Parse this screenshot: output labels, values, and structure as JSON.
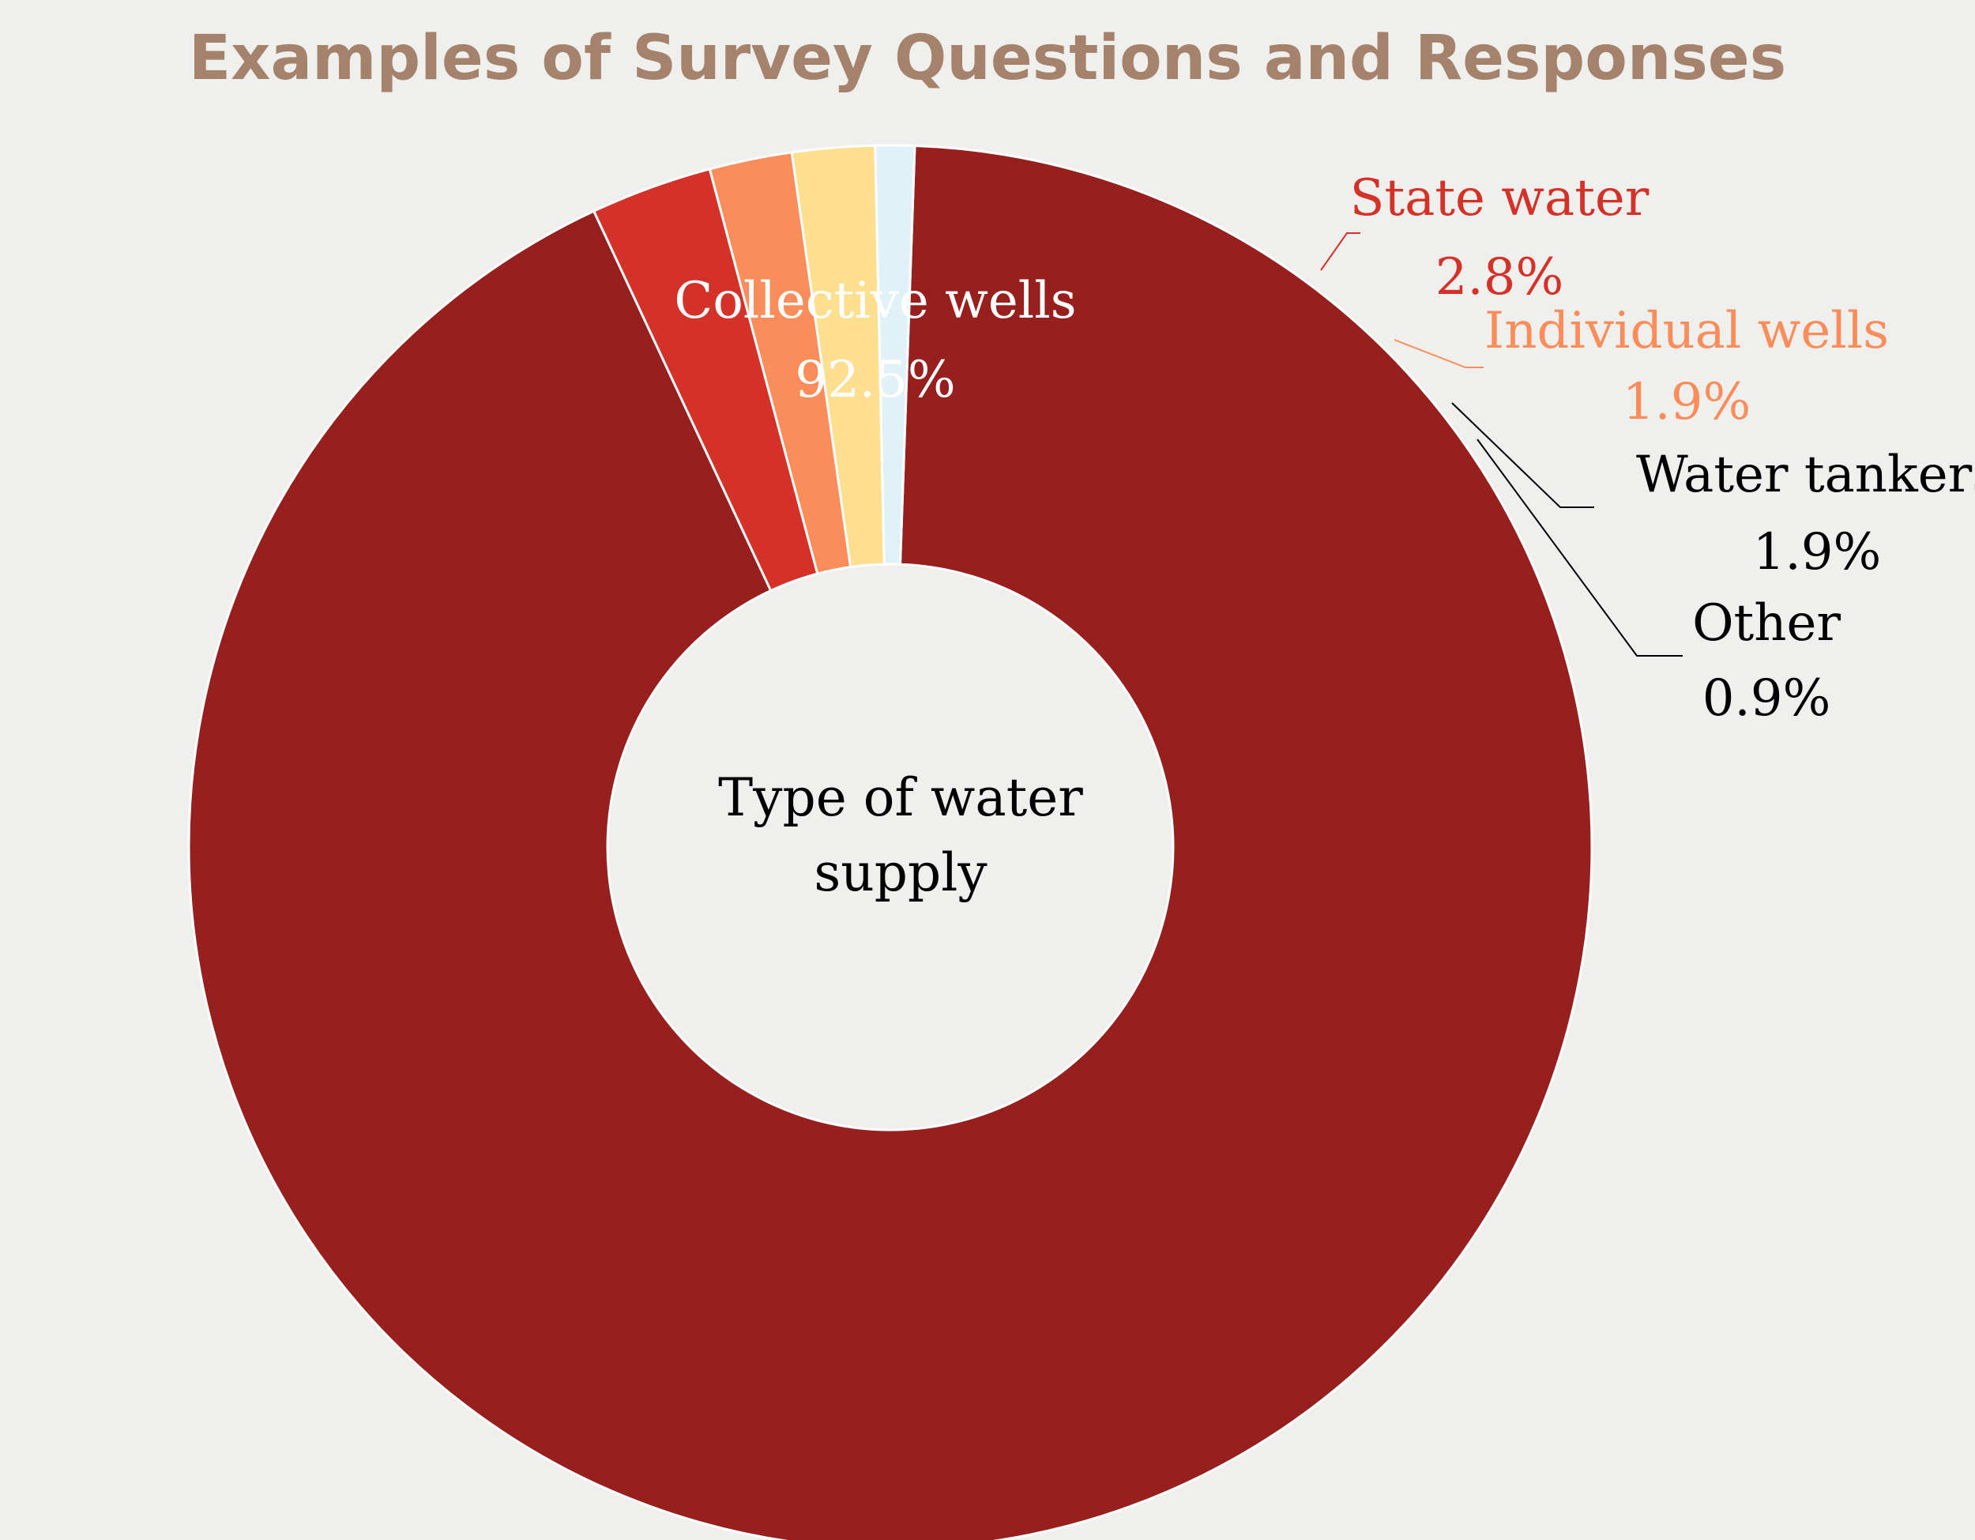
{
  "chart_data": {
    "type": "pie",
    "title": "Examples of Survey Questions and Responses",
    "center_label": [
      "Type of water",
      "supply"
    ],
    "slices": [
      {
        "label": "Collective wells",
        "value_label": "92.5%",
        "value": 92.5,
        "color": "#97201e",
        "label_color": "#ffffff"
      },
      {
        "label": "State water",
        "value_label": "2.8%",
        "value": 2.8,
        "color": "#d43128",
        "label_color": "#d43128"
      },
      {
        "label": "Individual wells",
        "value_label": "1.9%",
        "value": 1.9,
        "color": "#fb8d5a",
        "label_color": "#fb8d5a"
      },
      {
        "label": "Water tankers",
        "value_label": "1.9%",
        "value": 1.9,
        "color": "#fede8f",
        "label_color": "#000000"
      },
      {
        "label": "Other",
        "value_label": "0.9%",
        "value": 0.9,
        "color": "#e0f2f7",
        "label_color": "#000000"
      }
    ],
    "legend": "none",
    "title_color": "#a5826b",
    "background": "#efefed"
  }
}
